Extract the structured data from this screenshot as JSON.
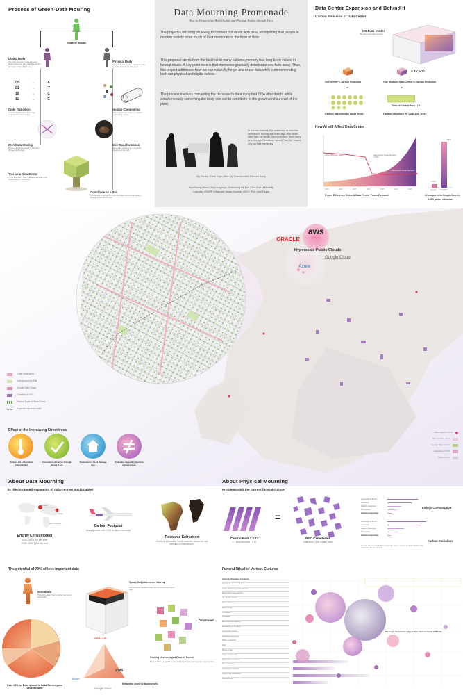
{
  "process": {
    "title": "Process of Green-Data Mouring",
    "death": "Death of Human",
    "digital_body": "Digital Body",
    "digital_body_desc": "The vast amount of data we leave behind when we die, including photos and apps in the digital body.",
    "physical_body": "Physical Body",
    "physical_body_desc": "The physical body decomposes to the natural nutrients and minerals.",
    "code_rows": [
      {
        "bits": "00",
        "letter": "A"
      },
      {
        "bits": "01",
        "letter": "T"
      },
      {
        "bits": "10",
        "letter": "C"
      },
      {
        "bits": "11",
        "letter": "G"
      }
    ],
    "code_transition": "Code Transition",
    "code_transition_desc": "Convert digital codes from 0/1s sequences to DNA bases.",
    "human_composting": "Human Composting",
    "human_composting_desc": "Decomposes the body in a natural composting vessel.",
    "dna_storing": "DNA Data Storing",
    "dna_storing_desc": "Synthesized DNA stored in the plant storage technology.",
    "soil_transformation": "Soil Transformation",
    "soil_transformation_desc": "After eight weeks, it is completely transferred into soil.",
    "tree_center": "Tree as a Data Center",
    "tree_center_desc": "Trees become a new type of data center that holds people's memories.",
    "contribute_soil": "Contribute as a Soil",
    "contribute_soil_desc": "Contributes to the growth of a tree that memory and carbon storage in the form of soil."
  },
  "header": {
    "title": "Data Mourning Promenade",
    "subtitle": "How to Memorialize Both Digital and Physical Bodies through Trees",
    "para1": "The project is focusing on a way to connect our death with data, recognizing that people in modern society store much of their memories in the form of data.",
    "para2": "This proposal stems from the fact that in many cultures,memory has long been valued in funeral rituals. A key point here is that memories gradually deteriorate and fade away. Thus, this project addresses how we can naturally forget and erase data while commemorating both our physical and digital selves.",
    "para3": "The process involves converting the deceased's data into plant DNA after death, while simultaneously converting the body into soil to contribute to the growth and survival of the plant.",
    "korean_text": "In Korean funerals, it is customary to burn the deceased's belongings three days after death. After that, the family commemorates them every year through Ceremony named \"Jae-Sa\", based only on their memories.",
    "photo_caption": "My Family Three Days After My Grandmother Passed Away",
    "credits1": "HyunSeung Moon / Seyi Arogunyo, Embracing the End / The End of Mortality",
    "credits2": "Columbia GSAPP Advanced Studio Summer 2024 / Prof. Uriel Fogue"
  },
  "expansion": {
    "title": "Data Center Expansion and Behind It",
    "carbon_title": "Carbon Emission of Data Center",
    "ms_center": "MS Data Center",
    "ms_center_sub": "(Medium-size Data Center)",
    "multiplier": "× 12,600",
    "server_emission": "One server's Carbon Emission",
    "medium_emission": "One Medium Data Center's Carbon Emission",
    "equals1": "=",
    "equals2": "=",
    "trees_central_park": "Trees in Central Park * 18.1",
    "absorbed_88": "Carbon absorbed by 88·85 Trees",
    "absorbed_1m": "Carbon absorbed by 1,049,600 Trees"
  },
  "ai_chart": {
    "title": "How AI will Affect Data Center",
    "left_caption": "Power Efficiency Gains & Data Center Power Demand",
    "right_caption": "AI compared to Google Search",
    "right_caption2": "6-10X power intensive",
    "bar_label": "2.9Wh",
    "bar_label_small": "0.3Wh",
    "bar_names": [
      "Google",
      "ChatGPT"
    ],
    "annot1": "Power Efficiency Gains",
    "annot2": "Data Center Power Demand (TWh)",
    "annot3": "Data Center Power Demand"
  },
  "map_legend": {
    "items": [
      {
        "label": "A tree-lined street",
        "color": "#f2a6c0"
      },
      {
        "label": "Park Around the Site",
        "color": "#cfe6b0"
      },
      {
        "label": "Google Data Center",
        "color": "#e58fb8"
      },
      {
        "label": "Cemetery in NYC",
        "color": "#9a7ab0"
      },
      {
        "label": "Various Types of Street Trees",
        "color": "#5f9d45"
      },
      {
        "label": "Expected expansion path",
        "color": "#999999"
      }
    ]
  },
  "map_right_legend": {
    "items": [
      {
        "label": "Data Center in NYC",
        "color": "#d8447a"
      },
      {
        "label": "Site Location Zone",
        "color": "#e8c9d8"
      },
      {
        "label": "Google Data Center",
        "color": "#b9d18f"
      },
      {
        "label": "Cemetery in NYC",
        "color": "#d9a0c8"
      },
      {
        "label": "Park in NYC",
        "color": "#cfcfd6"
      }
    ]
  },
  "clouds": {
    "oracle": "ORACLE",
    "aws": "aws",
    "hyperscale": "Hyperscale Public Clouds",
    "google": "Google Cloud",
    "azure": "Azure"
  },
  "effects": {
    "title": "Effect of the Increasing Street trees",
    "items": [
      {
        "label": "Reduce the Urban-Heat Island Effect"
      },
      {
        "label": "Absorption of carbon through Street Trees"
      },
      {
        "label": "Reduction of flood damage risk"
      },
      {
        "label": "Reducing inequality in urban infrastructure"
      }
    ]
  },
  "about_data": {
    "title": "About Data Mourning",
    "question": "Is the continued expansion of data-centers sustainable?",
    "energy": "Energy Consumption",
    "energy_desc1": "2022: 460 TWh per year",
    "energy_desc2": "2026: 1050 TWh per year",
    "carbon": "Carbon Footprint",
    "carbon_desc": "Already same with 2.6% Aviation industries",
    "resource": "Resource Extraction",
    "resource_desc": "Mostly in Africa and South America, Based on low standard & Extractivism",
    "map_labels": [
      "Germany",
      "Japan",
      "Other Countries"
    ]
  },
  "about_physical": {
    "title": "About Physical Mourning",
    "question": "Problems with the current funeral culture",
    "central_park": "Central Park * 3.17",
    "central_park_desc": "1.61 square miles * 3.17",
    "nyc_cemeteries": "NYC Cemeteries",
    "nyc_cemeteries_desc": "Total Area = 4.81 square miles",
    "equals": "=",
    "methods": [
      "Conventional Burial",
      "Cremation",
      "Alkaline Hydrolysis",
      "Promession",
      "Human Composting"
    ],
    "energy_title": "Energy Consumption",
    "carbon_title": "Carbon Emissions",
    "compost_desc": "Human composting is an increasingly more environmentally friendly than traditional burial methods."
  },
  "potential": {
    "title": "The potential of 70% of less important data",
    "individuals": "Individuals",
    "individuals_desc": "70% of the data it has is neither wanted nor used again",
    "space_title": "Space that data center take up",
    "space_desc": "70% of space that data center take up for storing unused data",
    "data_forest": "Data Forest",
    "storing_title": "Storing Unleveraged Data in Forest",
    "storing_desc": "Store old data as digital memory in forest so that we can naturally erase old data",
    "networks": "Networks used by businesses",
    "pie_caption": "Over 68% of Data stored in Data Center goes Unleveraged",
    "oracle_label": "ORACLE",
    "aws_label": "aws",
    "azure_label": "Azure",
    "google_label": "Google Cloud"
  },
  "funeral": {
    "title": "Funeral Ritual of Various Cultures",
    "rituals": [
      "Ancestor Veneration Ceremony",
      "Inurnment",
      "Ashes Scattering at The Summit",
      "Burial Within Columbarium",
      "Sky Burial (Tibetan)",
      "Mummification",
      "Water Burial",
      "Cremation",
      "Ossuaries",
      "Memorial Tree Planting",
      "Embalming of the Body",
      "Community Feasts",
      "Sacrificial Ceremony",
      "Wake & Visitation",
      "Vigil",
      "Burial at Sea",
      "Stupa Construction",
      "Family Remembrance",
      "Memorial Park",
      "Columbarium Niches",
      "Ceremonial Procession",
      "Natural Burial"
    ],
    "memory_note": "\"Memory\" Commonly Appeared in Various Funeral Rituals"
  }
}
